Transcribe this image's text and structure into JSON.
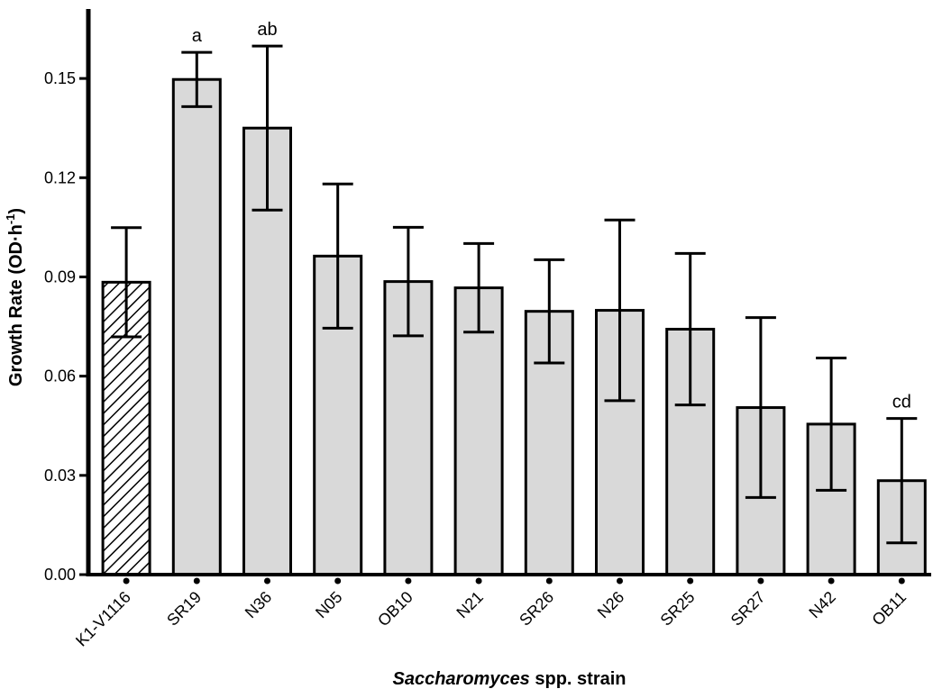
{
  "chart_data": {
    "type": "bar",
    "ylabel": [
      "Growth Rate (OD·h",
      "-1",
      ")"
    ],
    "xlabel": [
      "Saccharomyces",
      " spp. strain"
    ],
    "categories": [
      "K1-V1116",
      "SR19",
      "N36",
      "N05",
      "OB10",
      "N21",
      "SR26",
      "N26",
      "SR25",
      "SR27",
      "N42",
      "OB11"
    ],
    "values": [
      0.0884,
      0.1497,
      0.135,
      0.0963,
      0.0886,
      0.0867,
      0.0796,
      0.0799,
      0.0742,
      0.0505,
      0.0455,
      0.0284
    ],
    "errors": [
      0.0165,
      0.0082,
      0.0248,
      0.0218,
      0.0164,
      0.0134,
      0.0156,
      0.0273,
      0.0229,
      0.0272,
      0.02,
      0.0188
    ],
    "significance_labels": [
      null,
      "a",
      "ab",
      null,
      null,
      null,
      null,
      null,
      null,
      null,
      null,
      "cd"
    ],
    "bar_patterns": [
      "hatch",
      "solid",
      "solid",
      "solid",
      "solid",
      "solid",
      "solid",
      "solid",
      "solid",
      "solid",
      "solid",
      "solid"
    ],
    "color": "#d9d9d9",
    "ylim": [
      0,
      0.171
    ],
    "yticks": [
      {
        "value": 0,
        "label": "0.00"
      },
      0.03,
      0.06,
      0.09,
      0.12,
      0.15
    ]
  }
}
